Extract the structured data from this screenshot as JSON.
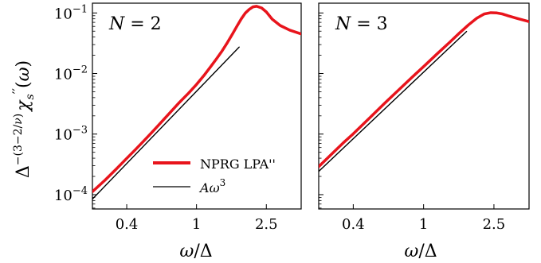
{
  "figure": {
    "ylabel": "Δ^{-(3−2/ν)} χ_s''(ω)",
    "xlabel": "ω/Δ",
    "legend": {
      "entries": [
        {
          "label": "NPRG LPA''",
          "color": "#e8141c"
        },
        {
          "label": "Aω^3",
          "color": "#000000"
        }
      ]
    }
  },
  "chart_data": [
    {
      "type": "line",
      "title": "N = 2",
      "xlabel": "ω/Δ",
      "ylabel": "Δ^{-(3−2/ν)} χ_s''(ω)",
      "xscale": "log",
      "yscale": "log",
      "xlim": [
        0.255,
        3.95
      ],
      "ylim": [
        5.8e-05,
        0.145
      ],
      "xticks": [
        0.4,
        1,
        2.5
      ],
      "xtick_labels": [
        "0.4",
        "1",
        "2.5"
      ],
      "yticks": [
        0.0001,
        0.001,
        0.01,
        0.1
      ],
      "ytick_labels": [
        "10^{-4}",
        "10^{-3}",
        "10^{-2}",
        "10^{-1}"
      ],
      "grid": false,
      "legend_position": "bottom-right",
      "series": [
        {
          "name": "NPRG LPA''",
          "color": "#e8141c",
          "x": [
            0.255,
            0.3,
            0.35,
            0.4,
            0.45,
            0.5,
            0.55,
            0.6,
            0.65,
            0.7,
            0.8,
            0.9,
            1.0,
            1.1,
            1.2,
            1.3,
            1.4,
            1.5,
            1.6,
            1.7,
            1.8,
            1.9,
            2.0,
            2.1,
            2.2,
            2.35,
            2.5,
            2.7,
            3.0,
            3.4,
            3.95
          ],
          "y": [
            0.000112,
            0.000172,
            0.000268,
            0.000397,
            0.00056,
            0.00077,
            0.00103,
            0.00135,
            0.00174,
            0.0022,
            0.00335,
            0.00473,
            0.0066,
            0.0092,
            0.0128,
            0.0175,
            0.0237,
            0.0325,
            0.0445,
            0.0605,
            0.08,
            0.1,
            0.115,
            0.126,
            0.129,
            0.121,
            0.104,
            0.079,
            0.062,
            0.052,
            0.045
          ]
        },
        {
          "name": "Aω^3",
          "color": "#000000",
          "x": [
            0.255,
            1.75
          ],
          "y": [
            8.45e-05,
            0.0273
          ]
        }
      ]
    },
    {
      "type": "line",
      "title": "N = 3",
      "xlabel": "ω/Δ",
      "xscale": "log",
      "yscale": "log",
      "xlim": [
        0.255,
        3.95
      ],
      "ylim": [
        5.8e-05,
        0.145
      ],
      "xticks": [
        0.4,
        1,
        2.5
      ],
      "xtick_labels": [
        "0.4",
        "1",
        "2.5"
      ],
      "yticks": [
        0.0001,
        0.001,
        0.01,
        0.1
      ],
      "grid": false,
      "series": [
        {
          "name": "NPRG LPA''",
          "color": "#e8141c",
          "x": [
            0.255,
            0.3,
            0.35,
            0.4,
            0.5,
            0.6,
            0.7,
            0.8,
            0.9,
            1.0,
            1.2,
            1.4,
            1.6,
            1.8,
            2.0,
            2.2,
            2.4,
            2.6,
            2.8,
            3.0,
            3.4,
            3.95
          ],
          "y": [
            0.00029,
            0.00046,
            0.00071,
            0.00101,
            0.0019,
            0.0032,
            0.0049,
            0.0071,
            0.0098,
            0.013,
            0.0215,
            0.0325,
            0.047,
            0.064,
            0.082,
            0.096,
            0.101,
            0.1,
            0.096,
            0.09,
            0.081,
            0.072
          ]
        },
        {
          "name": "Aω^3",
          "color": "#000000",
          "x": [
            0.255,
            1.75
          ],
          "y": [
            0.000242,
            0.0494
          ]
        }
      ]
    }
  ]
}
